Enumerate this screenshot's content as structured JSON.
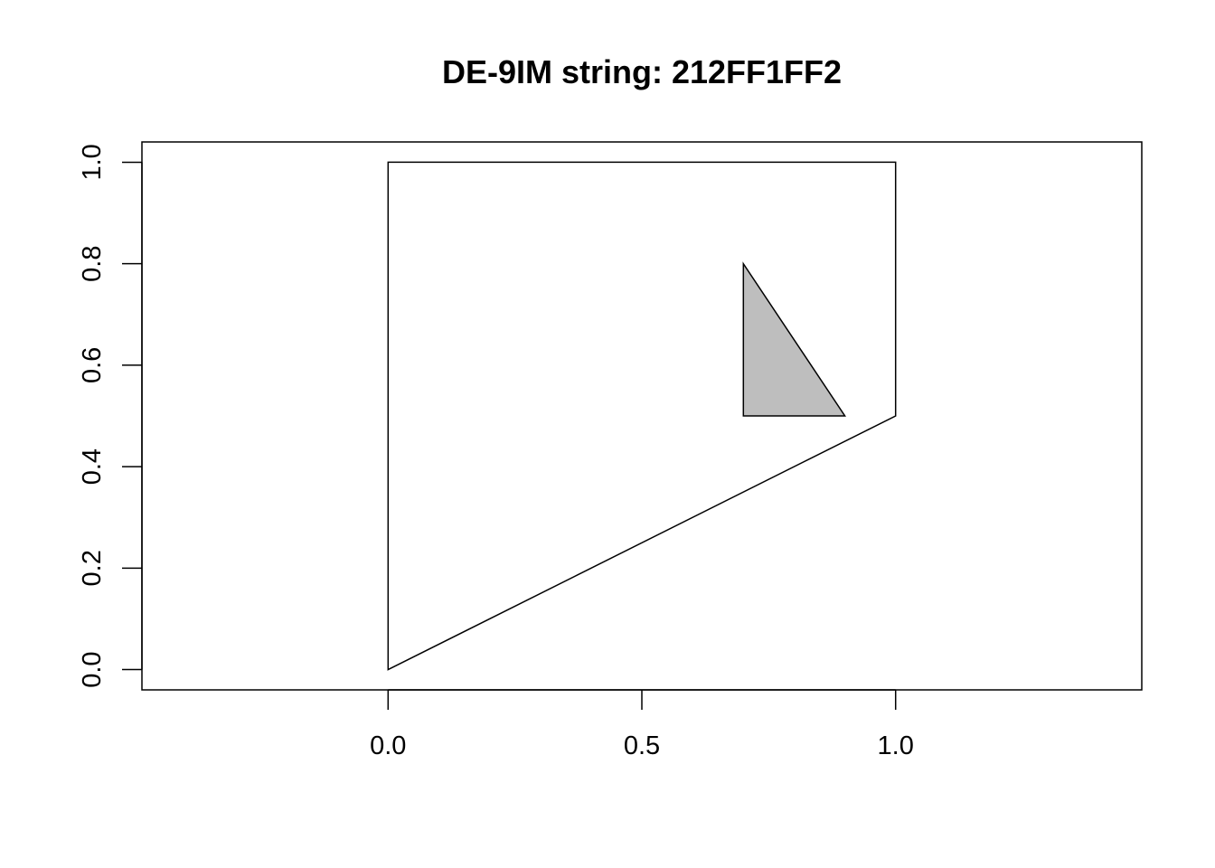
{
  "chart_data": {
    "type": "polygon_plot",
    "title": "DE-9IM string: 212FF1FF2",
    "xlabel": "",
    "ylabel": "",
    "xlim": [
      -0.485,
      1.485
    ],
    "ylim": [
      -0.04,
      1.04
    ],
    "x_ticks": [
      {
        "value": 0.0,
        "label": "0.0"
      },
      {
        "value": 0.5,
        "label": "0.5"
      },
      {
        "value": 1.0,
        "label": "1.0"
      }
    ],
    "y_ticks": [
      {
        "value": 0.0,
        "label": "0.0"
      },
      {
        "value": 0.2,
        "label": "0.2"
      },
      {
        "value": 0.4,
        "label": "0.4"
      },
      {
        "value": 0.6,
        "label": "0.6"
      },
      {
        "value": 0.8,
        "label": "0.8"
      },
      {
        "value": 1.0,
        "label": "1.0"
      }
    ],
    "polygons": [
      {
        "points": [
          [
            0,
            0
          ],
          [
            1,
            0.5
          ],
          [
            1,
            1
          ],
          [
            0,
            1
          ]
        ],
        "fill": "#ffffff",
        "stroke": "#000000"
      },
      {
        "points": [
          [
            0.7,
            0.5
          ],
          [
            0.9,
            0.5
          ],
          [
            0.7,
            0.8
          ]
        ],
        "fill": "#bebebe",
        "stroke": "#000000"
      }
    ]
  }
}
